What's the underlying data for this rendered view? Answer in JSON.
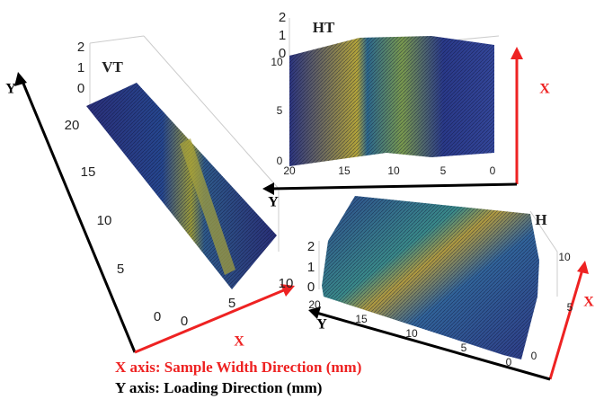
{
  "panels": [
    {
      "label": "VT",
      "z_ticks": [
        "2",
        "1",
        "0"
      ],
      "y_ticks": [
        "20",
        "15",
        "10",
        "5",
        "0"
      ],
      "x_ticks": [
        "0",
        "5",
        "10"
      ],
      "x_arrow": "X",
      "y_arrow": "Y"
    },
    {
      "label": "HT",
      "z_ticks": [
        "2",
        "1",
        "0"
      ],
      "side_ticks": [
        "10",
        "5",
        "0"
      ],
      "y_ticks": [
        "20",
        "15",
        "10",
        "5",
        "0"
      ],
      "x_arrow": "X",
      "y_arrow": "Y"
    },
    {
      "label": "H",
      "z_ticks": [
        "2",
        "1",
        "0"
      ],
      "y_ticks": [
        "20",
        "15",
        "10",
        "5",
        "0"
      ],
      "x_ticks": [
        "10",
        "5",
        "0"
      ],
      "x_arrow": "X",
      "y_arrow": "Y"
    }
  ],
  "caption": [
    "X axis: Sample Width Direction (mm)",
    "Y axis: Loading Direction (mm)"
  ]
}
